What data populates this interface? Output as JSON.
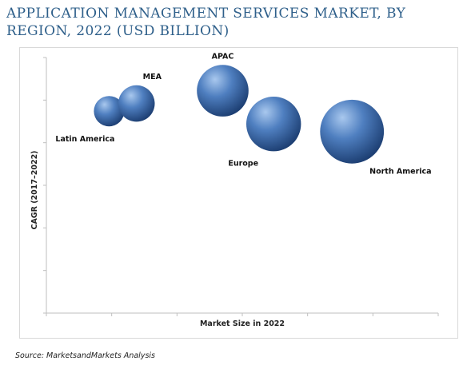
{
  "title": "APPLICATION MANAGEMENT SERVICES MARKET, BY REGION, 2022 (USD BILLION)",
  "source": "Source: MarketsandMarkets Analysis",
  "colors": {
    "bubble_light": "#a9c8ee",
    "bubble_mid": "#4f7fc0",
    "bubble_dark": "#1d3f73",
    "axis": "#bfbfbf"
  },
  "chart_data": {
    "type": "scatter",
    "title": "",
    "xlabel": "Market Size in 2022",
    "ylabel": "CAGR (2017–2022)",
    "xlim": [
      0,
      10
    ],
    "ylim": [
      0,
      10
    ],
    "grid": false,
    "legend": "none",
    "points": [
      {
        "name": "Latin America",
        "x": 1.6,
        "y": 7.9,
        "size": 1.0,
        "label_position": "below-left"
      },
      {
        "name": "MEA",
        "x": 2.3,
        "y": 8.2,
        "size": 1.2,
        "label_position": "above-right"
      },
      {
        "name": "APAC",
        "x": 4.5,
        "y": 8.7,
        "size": 1.7,
        "label_position": "above"
      },
      {
        "name": "Europe",
        "x": 5.8,
        "y": 7.4,
        "size": 1.8,
        "label_position": "below-left"
      },
      {
        "name": "North America",
        "x": 7.8,
        "y": 7.1,
        "size": 2.1,
        "label_position": "below-right"
      }
    ]
  }
}
